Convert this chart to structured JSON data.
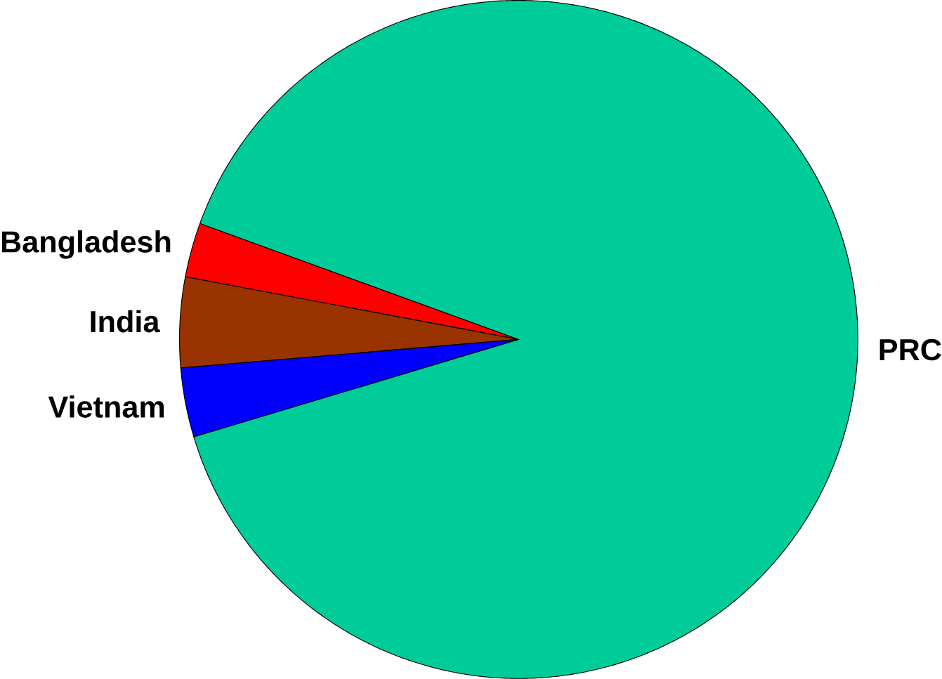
{
  "chart_data": {
    "type": "pie",
    "categories": [
      "Bangladesh",
      "India",
      "Vietnam",
      "PRC"
    ],
    "values": [
      2.6,
      4.3,
      3.3,
      89.8
    ],
    "colors": [
      "#ff0000",
      "#993300",
      "#0000ff",
      "#00cc99"
    ]
  }
}
